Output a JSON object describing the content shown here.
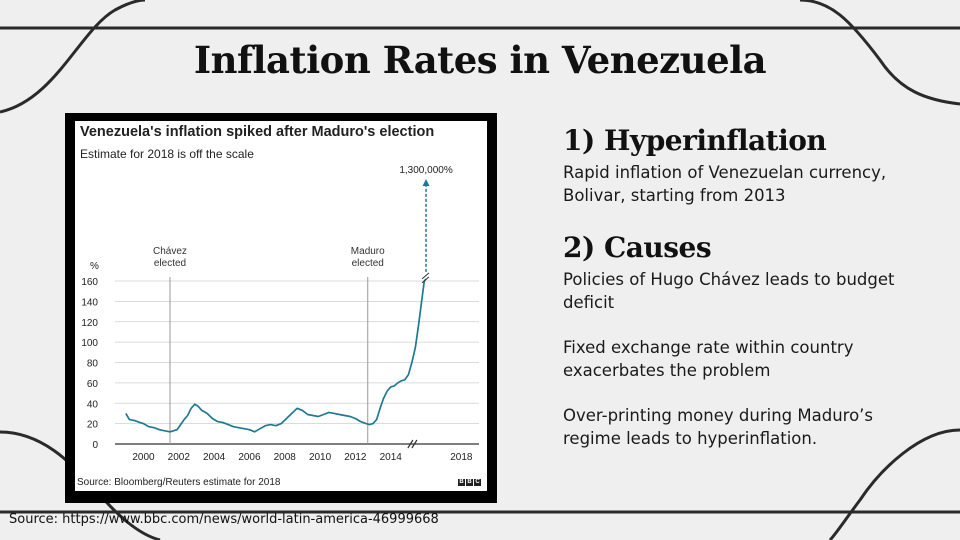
{
  "slide": {
    "title": "Inflation Rates in Venezuela",
    "source": "Source: https://www.bbc.com/news/world-latin-america-46999668"
  },
  "points": [
    {
      "heading": "1) Hyperinflation",
      "paragraphs": [
        "Rapid inflation of Venezuelan currency, Bolivar, starting from 2013"
      ]
    },
    {
      "heading": "2) Causes",
      "paragraphs": [
        "Policies of Hugo Chávez leads to budget deficit",
        "Fixed exchange rate within country exacerbates the problem",
        "Over-printing money during Maduro’s regime leads to hyperinflation."
      ]
    }
  ],
  "chart_data": {
    "type": "line",
    "title": "Venezuela's inflation spiked after Maduro's election",
    "subtitle": "Estimate for 2018 is off the scale",
    "source": "Source: Bloomberg/Reuters estimate for 2018",
    "logo": "BBC",
    "ylabel": "%",
    "ylim": [
      0,
      160
    ],
    "yticks": [
      0,
      20,
      40,
      60,
      80,
      100,
      120,
      140,
      160
    ],
    "xlim": [
      1998.5,
      2019
    ],
    "xticks": [
      2000,
      2002,
      2004,
      2006,
      2008,
      2010,
      2012,
      2014,
      2018
    ],
    "annotations": [
      {
        "label": [
          "Chávez",
          "elected"
        ],
        "x": 2001.5
      },
      {
        "label": [
          "Maduro",
          "elected"
        ],
        "x": 2012.7
      }
    ],
    "off_scale_label": "1,300,000%",
    "series": [
      {
        "name": "Inflation",
        "color": "#1e7a94",
        "x": [
          1999.0,
          1999.2,
          1999.5,
          1999.8,
          2000.0,
          2000.3,
          2000.6,
          2000.9,
          2001.2,
          2001.5,
          2001.7,
          2001.9,
          2002.1,
          2002.3,
          2002.5,
          2002.7,
          2002.9,
          2003.1,
          2003.3,
          2003.6,
          2003.9,
          2004.2,
          2004.5,
          2004.8,
          2005.1,
          2005.4,
          2005.7,
          2006.0,
          2006.3,
          2006.6,
          2006.9,
          2007.2,
          2007.5,
          2007.8,
          2008.1,
          2008.4,
          2008.7,
          2009.0,
          2009.3,
          2009.6,
          2009.9,
          2010.2,
          2010.5,
          2010.8,
          2011.1,
          2011.4,
          2011.7,
          2012.0,
          2012.3,
          2012.6,
          2012.8,
          2013.0,
          2013.2,
          2013.4,
          2013.6,
          2013.8,
          2014.0,
          2014.2,
          2014.4,
          2014.6,
          2014.8,
          2015.0,
          2015.2,
          2015.4,
          2015.6,
          2015.75,
          2015.9,
          2016.0
        ],
        "values": [
          30,
          24,
          23,
          21,
          20,
          17,
          16,
          14,
          13,
          12,
          13,
          14,
          19,
          24,
          28,
          35,
          39,
          37,
          33,
          30,
          25,
          22,
          21,
          19,
          17,
          16,
          15,
          14,
          12,
          15,
          18,
          19,
          18,
          20,
          25,
          30,
          35,
          33,
          29,
          28,
          27,
          29,
          31,
          30,
          29,
          28,
          27,
          25,
          22,
          20,
          19,
          20,
          24,
          35,
          45,
          52,
          56,
          57,
          60,
          62,
          63,
          68,
          80,
          95,
          120,
          140,
          160,
          162
        ]
      }
    ]
  }
}
